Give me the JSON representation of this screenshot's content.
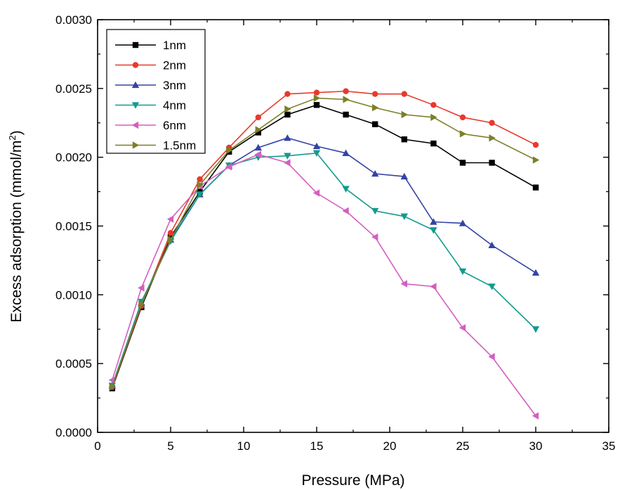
{
  "chart_data": {
    "type": "line",
    "title": "",
    "xlabel": "Pressure (MPa)",
    "ylabel": "Excess adsorption (mmol/m",
    "ylabel_superscript": "2",
    "ylabel_close": ")",
    "xlim": [
      0,
      35
    ],
    "ylim": [
      0.0,
      0.003
    ],
    "x_ticks": [
      0,
      5,
      10,
      15,
      20,
      25,
      30,
      35
    ],
    "x_tick_labels": [
      "0",
      "5",
      "10",
      "15",
      "20",
      "25",
      "30",
      "35"
    ],
    "y_ticks": [
      0.0,
      0.0005,
      0.001,
      0.0015,
      0.002,
      0.0025,
      0.003
    ],
    "y_tick_labels": [
      "0.0000",
      "0.0005",
      "0.0010",
      "0.0015",
      "0.0020",
      "0.0025",
      "0.0030"
    ],
    "grid": false,
    "legend_position": "top-left",
    "x": [
      1,
      3,
      5,
      7,
      9,
      11,
      13,
      15,
      17,
      19,
      21,
      23,
      25,
      27,
      30
    ],
    "series": [
      {
        "name": "1nm",
        "color": "#000000",
        "marker": "square",
        "values": [
          0.00032,
          0.00091,
          0.00142,
          0.00175,
          0.00204,
          0.00218,
          0.00231,
          0.00238,
          0.00231,
          0.00224,
          0.00213,
          0.0021,
          0.00196,
          0.00196,
          0.00178
        ]
      },
      {
        "name": "2nm",
        "color": "#e8392b",
        "marker": "circle",
        "values": [
          0.00033,
          0.00092,
          0.00145,
          0.00184,
          0.00207,
          0.00229,
          0.00246,
          0.00247,
          0.00248,
          0.00246,
          0.00246,
          0.00238,
          0.00229,
          0.00225,
          0.00209
        ]
      },
      {
        "name": "3nm",
        "color": "#3343a6",
        "marker": "triangle-up",
        "values": [
          0.00034,
          0.00094,
          0.0014,
          0.00173,
          0.00194,
          0.00207,
          0.00214,
          0.00208,
          0.00203,
          0.00188,
          0.00186,
          0.00153,
          0.00152,
          0.00136,
          0.00116
        ]
      },
      {
        "name": "4nm",
        "color": "#149a8e",
        "marker": "triangle-down",
        "values": [
          0.00034,
          0.00095,
          0.00139,
          0.00173,
          0.00194,
          0.002,
          0.00201,
          0.00203,
          0.00177,
          0.00161,
          0.00157,
          0.00147,
          0.00117,
          0.00106,
          0.00075
        ]
      },
      {
        "name": "6nm",
        "color": "#d45fc0",
        "marker": "triangle-left",
        "values": [
          0.00038,
          0.00105,
          0.00155,
          0.00179,
          0.00193,
          0.00202,
          0.00196,
          0.00174,
          0.00161,
          0.00142,
          0.00108,
          0.00106,
          0.00076,
          0.00055,
          0.00012
        ]
      },
      {
        "name": "1.5nm",
        "color": "#7d7f2a",
        "marker": "triangle-right",
        "values": [
          0.00033,
          0.00093,
          0.0014,
          0.0018,
          0.00205,
          0.0022,
          0.00235,
          0.00243,
          0.00242,
          0.00236,
          0.00231,
          0.00229,
          0.00217,
          0.00214,
          0.00198
        ]
      }
    ]
  }
}
